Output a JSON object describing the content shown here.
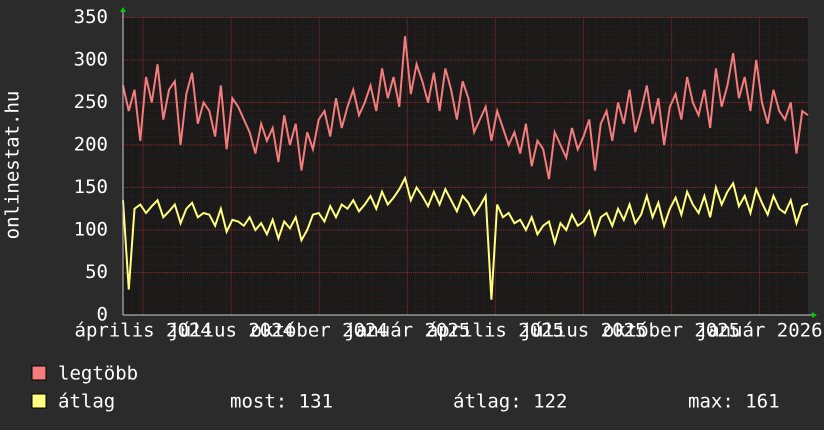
{
  "chart_data": {
    "type": "line",
    "y_label": "onlinestat.hu",
    "xlim": [
      0,
      119
    ],
    "xticks": [
      {
        "value": 3.5,
        "label": "április 2024"
      },
      {
        "value": 18.8,
        "label": "július 2024"
      },
      {
        "value": 34.1,
        "label": "október 2024"
      },
      {
        "value": 49.4,
        "label": "január 2025"
      },
      {
        "value": 64.7,
        "label": "április 2025"
      },
      {
        "value": 80,
        "label": "július 2025"
      },
      {
        "value": 95.3,
        "label": "október 2025"
      },
      {
        "value": 110.6,
        "label": "január 2026"
      }
    ],
    "ylim": [
      0,
      350
    ],
    "yticks": [
      0,
      50,
      100,
      150,
      200,
      250,
      300,
      350
    ],
    "grid": true,
    "series": [
      {
        "name": "legtöbb",
        "color": "#f47c7c",
        "values": [
          270,
          240,
          265,
          205,
          280,
          250,
          295,
          230,
          265,
          275,
          200,
          260,
          285,
          225,
          250,
          240,
          210,
          270,
          195,
          255,
          245,
          230,
          215,
          190,
          225,
          205,
          220,
          180,
          235,
          200,
          225,
          170,
          215,
          195,
          230,
          240,
          210,
          255,
          220,
          245,
          265,
          235,
          250,
          270,
          240,
          290,
          255,
          280,
          245,
          328,
          260,
          295,
          275,
          250,
          285,
          240,
          290,
          265,
          230,
          275,
          255,
          215,
          230,
          245,
          205,
          240,
          220,
          200,
          215,
          190,
          225,
          175,
          205,
          195,
          160,
          215,
          200,
          185,
          220,
          195,
          210,
          230,
          170,
          225,
          240,
          205,
          250,
          225,
          265,
          215,
          240,
          270,
          225,
          255,
          200,
          245,
          260,
          230,
          280,
          250,
          235,
          265,
          220,
          290,
          245,
          270,
          308,
          255,
          280,
          240,
          300,
          250,
          225,
          265,
          240,
          230,
          250,
          190,
          240,
          235
        ]
      },
      {
        "name": "átlag",
        "color": "#ffff80",
        "values": [
          135,
          30,
          125,
          130,
          120,
          128,
          135,
          115,
          122,
          130,
          108,
          125,
          132,
          115,
          120,
          118,
          105,
          125,
          98,
          112,
          110,
          105,
          115,
          100,
          108,
          95,
          112,
          90,
          110,
          102,
          115,
          88,
          100,
          118,
          120,
          110,
          128,
          115,
          130,
          125,
          135,
          122,
          130,
          140,
          125,
          145,
          130,
          138,
          148,
          161,
          135,
          150,
          140,
          128,
          145,
          130,
          148,
          135,
          122,
          140,
          132,
          118,
          128,
          140,
          18,
          130,
          115,
          120,
          108,
          112,
          100,
          115,
          95,
          105,
          110,
          85,
          108,
          100,
          118,
          105,
          110,
          122,
          95,
          115,
          120,
          105,
          125,
          112,
          130,
          108,
          118,
          140,
          115,
          132,
          105,
          125,
          138,
          118,
          145,
          130,
          120,
          140,
          115,
          150,
          130,
          145,
          155,
          128,
          140,
          120,
          148,
          132,
          118,
          140,
          125,
          120,
          135,
          108,
          128,
          131
        ]
      }
    ],
    "legend_stats": [
      "most: 131",
      "átlag: 122",
      "max: 161"
    ]
  }
}
